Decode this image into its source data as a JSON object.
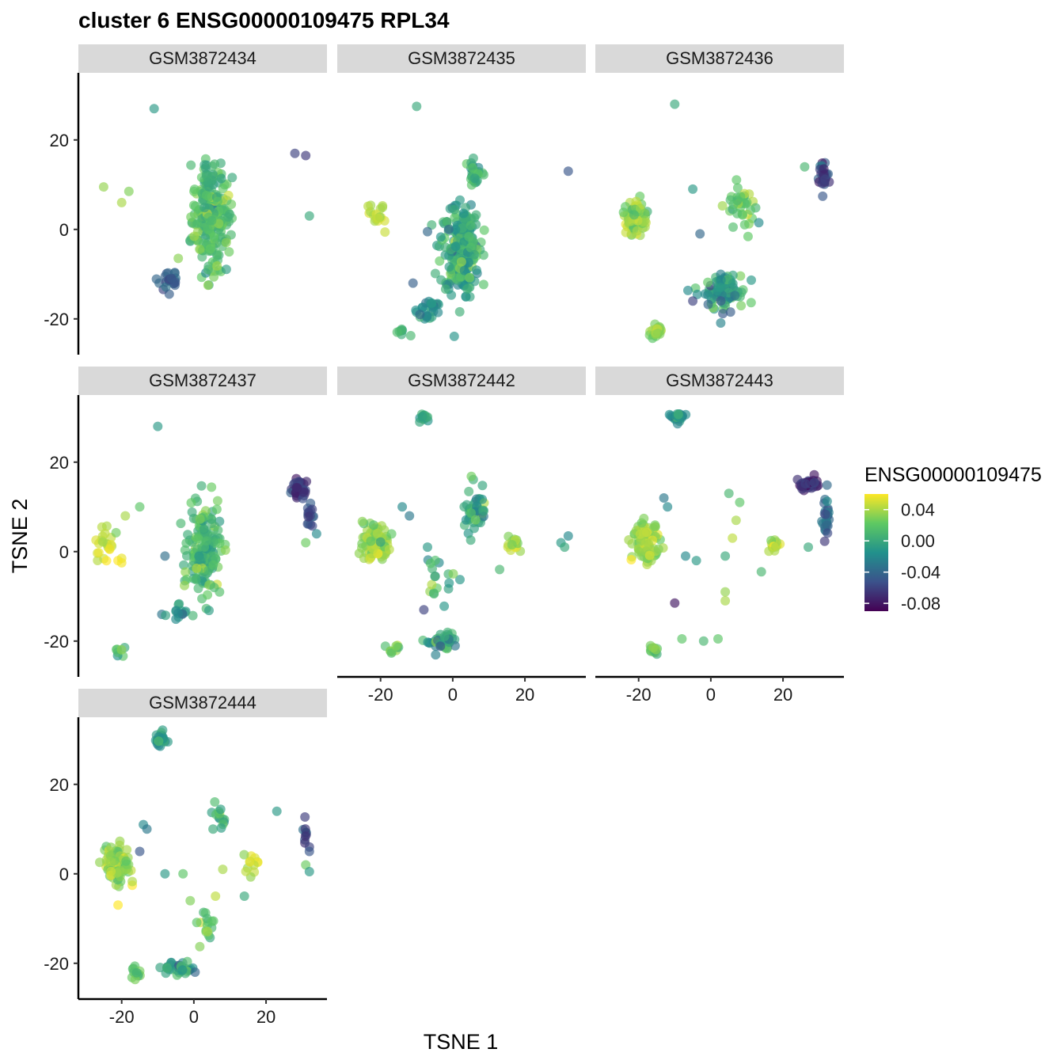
{
  "chart_data": {
    "type": "scatter",
    "title": "cluster 6 ENSG00000109475 RPL34",
    "xlabel": "TSNE 1",
    "ylabel": "TSNE 2",
    "x_ticks": [
      -20,
      0,
      20
    ],
    "y_ticks": [
      -20,
      0,
      20
    ],
    "xlim": [
      -32,
      36
    ],
    "ylim": [
      -28,
      35
    ],
    "grid": false,
    "legend": {
      "title": "ENSG00000109475",
      "placement": "right",
      "type": "colorbar",
      "range": [
        -0.09,
        0.06
      ],
      "ticks": [
        "0.04",
        "0.00",
        "-0.04",
        "-0.08"
      ],
      "tick_values": [
        0.04,
        0.0,
        -0.04,
        -0.08
      ],
      "colors": [
        "#440154",
        "#3b528b",
        "#21918c",
        "#5ec962",
        "#fde725"
      ]
    },
    "panels": [
      {
        "name": "GSM3872434",
        "clusters": [
          {
            "cx": 5,
            "cy": 2,
            "sx": 5,
            "sy": 10,
            "n": 220,
            "v": 0.015,
            "vs": 0.012
          },
          {
            "cx": -7,
            "cy": -11,
            "sx": 3,
            "sy": 3,
            "n": 22,
            "v": -0.045,
            "vs": 0.012
          },
          {
            "cx": 4,
            "cy": 12,
            "sx": 2,
            "sy": 3,
            "n": 18,
            "v": 0.0,
            "vs": 0.01
          }
        ],
        "points": [
          {
            "x": -11,
            "y": 27,
            "v": -0.01
          },
          {
            "x": -25,
            "y": 9.5,
            "v": 0.035
          },
          {
            "x": -18,
            "y": 8.5,
            "v": 0.03
          },
          {
            "x": -20,
            "y": 6,
            "v": 0.04
          },
          {
            "x": 28,
            "y": 17,
            "v": -0.06
          },
          {
            "x": 31,
            "y": 16.5,
            "v": -0.065
          },
          {
            "x": 32,
            "y": 3,
            "v": 0.0
          }
        ]
      },
      {
        "name": "GSM3872435",
        "clusters": [
          {
            "cx": 2,
            "cy": -4,
            "sx": 5,
            "sy": 9,
            "n": 230,
            "v": 0.0,
            "vs": 0.015
          },
          {
            "cx": 6,
            "cy": 12,
            "sx": 2,
            "sy": 3,
            "n": 30,
            "v": -0.005,
            "vs": 0.015
          },
          {
            "cx": -7,
            "cy": -18,
            "sx": 3,
            "sy": 2,
            "n": 25,
            "v": -0.02,
            "vs": 0.012
          },
          {
            "cx": -21,
            "cy": 3,
            "sx": 2,
            "sy": 3,
            "n": 18,
            "v": 0.045,
            "vs": 0.006
          },
          {
            "cx": -14,
            "cy": -23,
            "sx": 2,
            "sy": 1.5,
            "n": 8,
            "v": 0.0,
            "vs": 0.01
          }
        ],
        "points": [
          {
            "x": -10,
            "y": 27.5,
            "v": 0.0
          },
          {
            "x": 32,
            "y": 13,
            "v": -0.05
          },
          {
            "x": -7,
            "y": -0.5,
            "v": -0.04
          },
          {
            "x": -11,
            "y": -12,
            "v": -0.045
          }
        ]
      },
      {
        "name": "GSM3872436",
        "clusters": [
          {
            "cx": -21,
            "cy": 3,
            "sx": 3,
            "sy": 3.5,
            "n": 75,
            "v": 0.035,
            "vs": 0.012
          },
          {
            "cx": 4,
            "cy": -14,
            "sx": 5,
            "sy": 4,
            "n": 90,
            "v": -0.01,
            "vs": 0.018
          },
          {
            "cx": 8,
            "cy": 5,
            "sx": 4,
            "sy": 5,
            "n": 35,
            "v": 0.025,
            "vs": 0.015
          },
          {
            "cx": -15,
            "cy": -23,
            "sx": 1.5,
            "sy": 1.2,
            "n": 22,
            "v": 0.03,
            "vs": 0.008
          },
          {
            "cx": 31,
            "cy": 12,
            "sx": 1.2,
            "sy": 3.5,
            "n": 28,
            "v": -0.06,
            "vs": 0.012
          }
        ],
        "points": [
          {
            "x": -10,
            "y": 28,
            "v": 0.0
          },
          {
            "x": 26,
            "y": 14,
            "v": 0.01
          },
          {
            "x": -3,
            "y": -1,
            "v": -0.04
          },
          {
            "x": -5,
            "y": 9,
            "v": -0.01
          },
          {
            "x": -5,
            "y": -16,
            "v": -0.06
          }
        ]
      },
      {
        "name": "GSM3872437",
        "clusters": [
          {
            "cx": 3,
            "cy": 0,
            "sx": 4,
            "sy": 9,
            "n": 170,
            "v": 0.01,
            "vs": 0.015
          },
          {
            "cx": -5,
            "cy": -14,
            "sx": 3,
            "sy": 2,
            "n": 15,
            "v": -0.02,
            "vs": 0.015
          },
          {
            "cx": 29,
            "cy": 14,
            "sx": 2,
            "sy": 1.5,
            "n": 45,
            "v": -0.07,
            "vs": 0.01
          },
          {
            "cx": 32,
            "cy": 8,
            "sx": 1,
            "sy": 3,
            "n": 15,
            "v": -0.055,
            "vs": 0.012
          },
          {
            "cx": -24,
            "cy": 2,
            "sx": 3,
            "sy": 3,
            "n": 22,
            "v": 0.045,
            "vs": 0.01
          },
          {
            "cx": -20,
            "cy": -23,
            "sx": 1.5,
            "sy": 1.5,
            "n": 7,
            "v": 0.02,
            "vs": 0.01
          }
        ],
        "points": [
          {
            "x": -10,
            "y": 28,
            "v": -0.01
          },
          {
            "x": -8,
            "y": -1,
            "v": -0.035
          },
          {
            "x": -15,
            "y": 10,
            "v": 0.02
          },
          {
            "x": -19,
            "y": 8,
            "v": 0.04
          },
          {
            "x": -21,
            "y": -2,
            "v": 0.06
          },
          {
            "x": -20,
            "y": -1.5,
            "v": 0.055
          },
          {
            "x": -20,
            "y": -2.5,
            "v": 0.058
          },
          {
            "x": 31,
            "y": 2,
            "v": 0.025
          },
          {
            "x": 34,
            "y": 4,
            "v": -0.02
          }
        ]
      },
      {
        "name": "GSM3872442",
        "clusters": [
          {
            "cx": -21,
            "cy": 2,
            "sx": 3.5,
            "sy": 4,
            "n": 110,
            "v": 0.035,
            "vs": 0.012
          },
          {
            "cx": -8,
            "cy": 30,
            "sx": 1.2,
            "sy": 1.2,
            "n": 14,
            "v": 0.0,
            "vs": 0.01
          },
          {
            "cx": 6,
            "cy": 10,
            "sx": 3,
            "sy": 5,
            "n": 45,
            "v": 0.0,
            "vs": 0.015
          },
          {
            "cx": 17,
            "cy": 1,
            "sx": 2,
            "sy": 2,
            "n": 14,
            "v": 0.04,
            "vs": 0.01
          },
          {
            "cx": -3,
            "cy": -20,
            "sx": 4,
            "sy": 2,
            "n": 45,
            "v": -0.005,
            "vs": 0.015
          },
          {
            "cx": -16,
            "cy": -22,
            "sx": 2,
            "sy": 1,
            "n": 10,
            "v": 0.02,
            "vs": 0.012
          },
          {
            "cx": -4,
            "cy": -6,
            "sx": 4,
            "sy": 6,
            "n": 18,
            "v": 0.01,
            "vs": 0.02
          }
        ],
        "points": [
          {
            "x": -14,
            "y": 10,
            "v": -0.02
          },
          {
            "x": -12,
            "y": 8,
            "v": -0.03
          },
          {
            "x": -8,
            "y": -13,
            "v": -0.06
          },
          {
            "x": -7,
            "y": 1,
            "v": -0.01
          },
          {
            "x": 30,
            "y": 2,
            "v": -0.01
          },
          {
            "x": 31,
            "y": 1,
            "v": 0.0
          },
          {
            "x": 32,
            "y": 3.5,
            "v": -0.02
          },
          {
            "x": 13,
            "y": -4,
            "v": 0.01
          }
        ]
      },
      {
        "name": "GSM3872443",
        "clusters": [
          {
            "cx": -18,
            "cy": 2,
            "sx": 3.5,
            "sy": 3.5,
            "n": 90,
            "v": 0.035,
            "vs": 0.012
          },
          {
            "cx": -9,
            "cy": 30,
            "sx": 1.5,
            "sy": 1.5,
            "n": 22,
            "v": -0.02,
            "vs": 0.015
          },
          {
            "cx": 27,
            "cy": 15,
            "sx": 2.5,
            "sy": 1.2,
            "n": 35,
            "v": -0.07,
            "vs": 0.01
          },
          {
            "cx": 32,
            "cy": 7,
            "sx": 1,
            "sy": 4,
            "n": 25,
            "v": -0.04,
            "vs": 0.015
          },
          {
            "cx": -16,
            "cy": -22,
            "sx": 1.2,
            "sy": 1,
            "n": 14,
            "v": 0.02,
            "vs": 0.01
          },
          {
            "cx": 17,
            "cy": 2,
            "sx": 2,
            "sy": 2,
            "n": 14,
            "v": 0.04,
            "vs": 0.01
          }
        ],
        "points": [
          {
            "x": -12,
            "y": 10,
            "v": -0.02
          },
          {
            "x": -13,
            "y": 12,
            "v": -0.03
          },
          {
            "x": -7,
            "y": -1,
            "v": -0.02
          },
          {
            "x": -4,
            "y": -2,
            "v": -0.01
          },
          {
            "x": -10,
            "y": -11.5,
            "v": -0.08
          },
          {
            "x": 4,
            "y": -1,
            "v": 0.0
          },
          {
            "x": 5,
            "y": 13,
            "v": 0.01
          },
          {
            "x": 8,
            "y": 11,
            "v": 0.02
          },
          {
            "x": 7,
            "y": 7,
            "v": 0.04
          },
          {
            "x": 6,
            "y": 3,
            "v": 0.045
          },
          {
            "x": 14,
            "y": -4.5,
            "v": 0.01
          },
          {
            "x": 4,
            "y": -9,
            "v": 0.035
          },
          {
            "x": 4,
            "y": -11,
            "v": 0.04
          },
          {
            "x": -8,
            "y": -19.5,
            "v": 0.02
          },
          {
            "x": -2,
            "y": -20,
            "v": 0.01
          },
          {
            "x": 2,
            "y": -19.5,
            "v": 0.02
          },
          {
            "x": 27,
            "y": 1,
            "v": 0.0
          }
        ]
      },
      {
        "name": "GSM3872444",
        "clusters": [
          {
            "cx": -21,
            "cy": 2,
            "sx": 3,
            "sy": 4,
            "n": 95,
            "v": 0.035,
            "vs": 0.012
          },
          {
            "cx": -9,
            "cy": 30,
            "sx": 1.5,
            "sy": 1.5,
            "n": 22,
            "v": -0.005,
            "vs": 0.012
          },
          {
            "cx": -5,
            "cy": -21,
            "sx": 4,
            "sy": 1.5,
            "n": 35,
            "v": -0.005,
            "vs": 0.015
          },
          {
            "cx": -16,
            "cy": -22,
            "sx": 1.5,
            "sy": 1,
            "n": 12,
            "v": 0.02,
            "vs": 0.01
          },
          {
            "cx": 7,
            "cy": 12,
            "sx": 2,
            "sy": 3,
            "n": 14,
            "v": 0.0,
            "vs": 0.015
          },
          {
            "cx": 16,
            "cy": 2,
            "sx": 2,
            "sy": 2.5,
            "n": 12,
            "v": 0.045,
            "vs": 0.01
          },
          {
            "cx": 3,
            "cy": -11,
            "sx": 3,
            "sy": 4,
            "n": 16,
            "v": 0.02,
            "vs": 0.02
          },
          {
            "cx": 31,
            "cy": 10,
            "sx": 0.8,
            "sy": 3,
            "n": 9,
            "v": -0.06,
            "vs": 0.01
          }
        ],
        "points": [
          {
            "x": -14,
            "y": 11,
            "v": -0.02
          },
          {
            "x": -13,
            "y": 10,
            "v": -0.03
          },
          {
            "x": -15,
            "y": 5,
            "v": -0.05
          },
          {
            "x": -21,
            "y": -7,
            "v": 0.06
          },
          {
            "x": -8,
            "y": 0,
            "v": -0.01
          },
          {
            "x": -3,
            "y": 0,
            "v": 0.02
          },
          {
            "x": -1,
            "y": -6,
            "v": 0.03
          },
          {
            "x": 23,
            "y": 14,
            "v": -0.01
          },
          {
            "x": 32,
            "y": 6,
            "v": -0.06
          },
          {
            "x": 32,
            "y": 5,
            "v": -0.05
          },
          {
            "x": 31,
            "y": 2,
            "v": 0.025
          },
          {
            "x": 32,
            "y": 0.5,
            "v": -0.01
          },
          {
            "x": 14,
            "y": -5,
            "v": 0.0
          },
          {
            "x": 8,
            "y": 1,
            "v": 0.04
          },
          {
            "x": 6,
            "y": -5,
            "v": 0.045
          }
        ]
      }
    ]
  }
}
